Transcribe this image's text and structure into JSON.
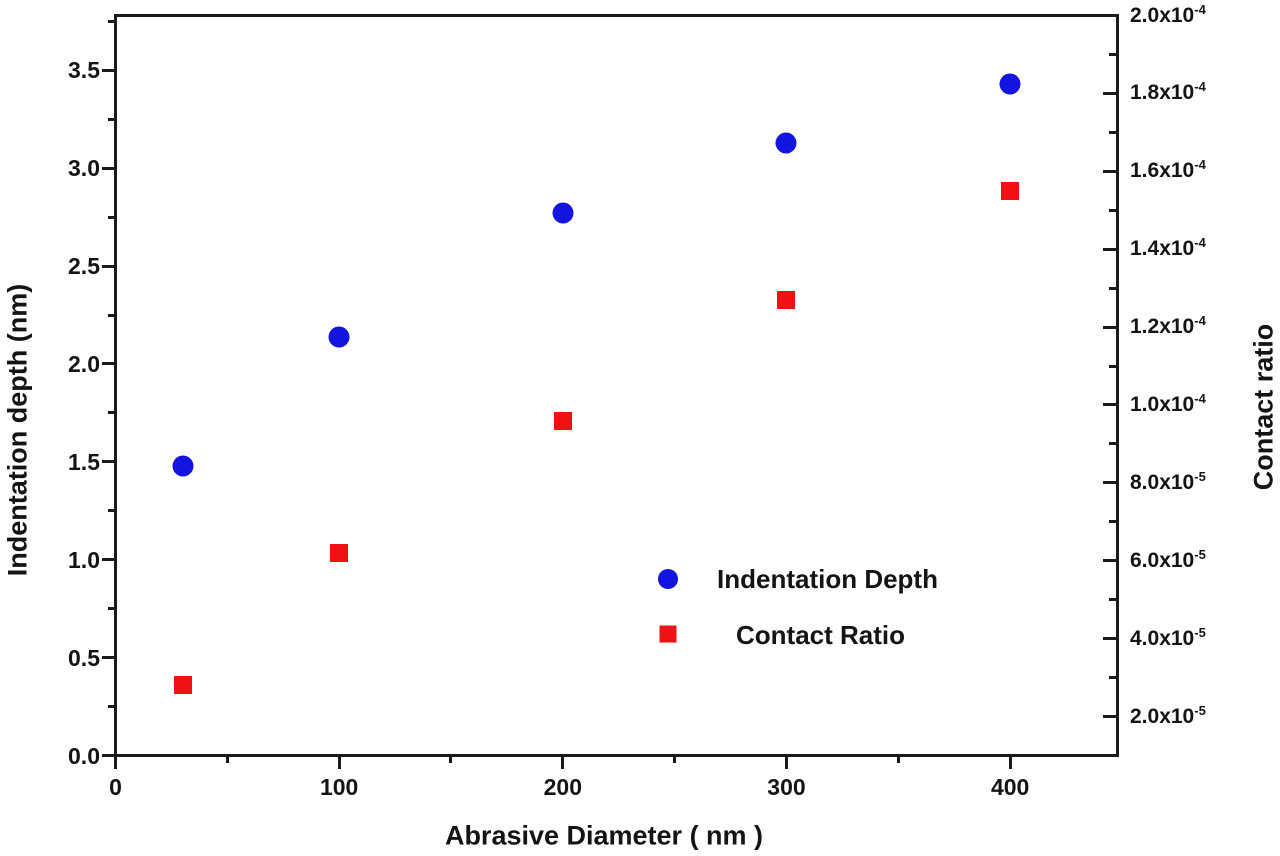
{
  "figure": {
    "background": "#ffffff",
    "frame_color": "#1a1a1a"
  },
  "chart_data": {
    "type": "scatter",
    "title": "",
    "x_values": [
      30,
      100,
      200,
      300,
      400
    ],
    "series": [
      {
        "name": "Indentation Depth",
        "axis": "left",
        "marker": "circle",
        "color": "#1414e0",
        "marker_size": 21,
        "values": [
          1.48,
          2.14,
          2.77,
          3.13,
          3.43
        ]
      },
      {
        "name": "Contact Ratio",
        "axis": "right",
        "marker": "square",
        "color": "#ee1212",
        "marker_size": 18,
        "values": [
          2.8e-05,
          6.2e-05,
          9.6e-05,
          0.000127,
          0.000155
        ]
      }
    ],
    "axes": {
      "x": {
        "label": "Abrasive Diameter ( nm )",
        "min": 0,
        "max": 448,
        "major_ticks": [
          {
            "v": 0,
            "label": "0"
          },
          {
            "v": 100,
            "label": "100"
          },
          {
            "v": 200,
            "label": "200"
          },
          {
            "v": 300,
            "label": "300"
          },
          {
            "v": 400,
            "label": "400"
          }
        ],
        "minor_ticks": [
          50,
          150,
          250,
          350
        ]
      },
      "left": {
        "label": "Indentation depth (nm)",
        "min": 0,
        "max": 3.78,
        "major_ticks": [
          {
            "v": 0.0,
            "label": "0.0"
          },
          {
            "v": 0.5,
            "label": "0.5"
          },
          {
            "v": 1.0,
            "label": "1.0"
          },
          {
            "v": 1.5,
            "label": "1.5"
          },
          {
            "v": 2.0,
            "label": "2.0"
          },
          {
            "v": 2.5,
            "label": "2.5"
          },
          {
            "v": 3.0,
            "label": "3.0"
          },
          {
            "v": 3.5,
            "label": "3.5"
          }
        ],
        "minor_ticks": [
          0.25,
          0.75,
          1.25,
          1.75,
          2.25,
          2.75,
          3.25,
          3.75
        ]
      },
      "right": {
        "label": "Contact ratio",
        "min": 1e-05,
        "max": 0.0002,
        "major_ticks": [
          {
            "v": 0.0002,
            "mantissa": "2.0x10",
            "exponent": "-4"
          },
          {
            "v": 0.00018,
            "mantissa": "1.8x10",
            "exponent": "-4"
          },
          {
            "v": 0.00016,
            "mantissa": "1.6x10",
            "exponent": "-4"
          },
          {
            "v": 0.00014,
            "mantissa": "1.4x10",
            "exponent": "-4"
          },
          {
            "v": 0.00012,
            "mantissa": "1.2x10",
            "exponent": "-4"
          },
          {
            "v": 0.0001,
            "mantissa": "1.0x10",
            "exponent": "-4"
          },
          {
            "v": 8e-05,
            "mantissa": "8.0x10",
            "exponent": "-5"
          },
          {
            "v": 6e-05,
            "mantissa": "6.0x10",
            "exponent": "-5"
          },
          {
            "v": 4e-05,
            "mantissa": "4.0x10",
            "exponent": "-5"
          },
          {
            "v": 2e-05,
            "mantissa": "2.0x10",
            "exponent": "-5"
          }
        ],
        "minor_ticks": [
          0.00019,
          0.00017,
          0.00015,
          0.00013,
          0.00011,
          9e-05,
          7e-05,
          5e-05,
          3e-05
        ]
      }
    },
    "legend": {
      "position": "inside-right-middle",
      "grid": "off"
    }
  }
}
